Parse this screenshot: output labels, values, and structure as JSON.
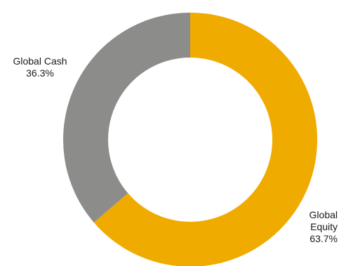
{
  "chart_data": {
    "type": "pie",
    "variant": "donut",
    "title": "",
    "slices": [
      {
        "label": "Global Equity",
        "label_lines": [
          "Global",
          "Equity"
        ],
        "value": 63.7,
        "value_text": "63.7%",
        "color": "#f0ab00"
      },
      {
        "label": "Global Cash",
        "label_lines": [
          "Global Cash"
        ],
        "value": 36.3,
        "value_text": "36.3%",
        "color": "#8c8d8b"
      }
    ],
    "start_angle": "12 o'clock",
    "direction": "clockwise",
    "legend": "none",
    "labels": "outside slices"
  }
}
